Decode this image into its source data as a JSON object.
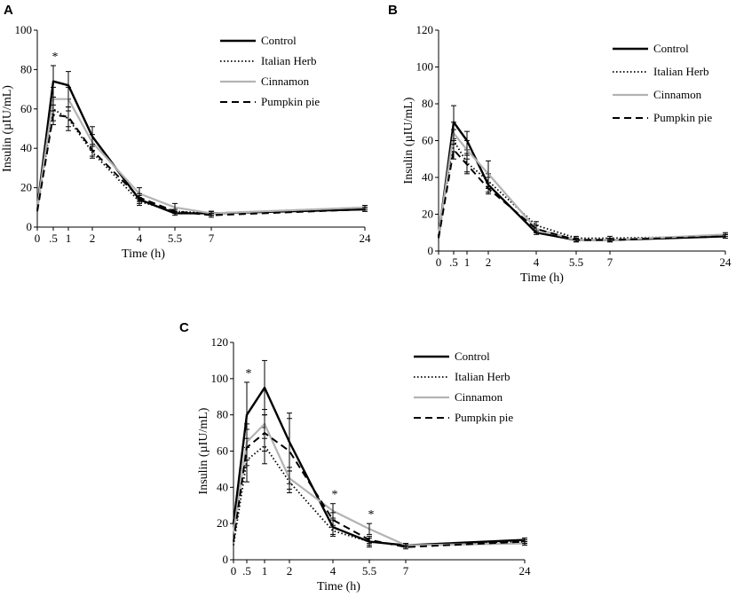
{
  "chart_data": [
    {
      "type": "line",
      "panel": "A",
      "xlabel": "Time (h)",
      "ylabel": "Insulin (µIU/mL)",
      "ylim": [
        0,
        100
      ],
      "yticks": [
        0,
        20,
        40,
        60,
        80,
        100
      ],
      "x_ticks": [
        "0",
        ".5",
        "1",
        "2",
        "4",
        "5.5",
        "7",
        "24"
      ],
      "x_tick_index": [
        0,
        1,
        2,
        3,
        4,
        5,
        6,
        7
      ],
      "legend": [
        "Control",
        "Italian Herb",
        "Cinnamon",
        "Pumpkin pie"
      ],
      "series": [
        {
          "name": "Control",
          "values": [
            10,
            74,
            72,
            46,
            14,
            7,
            7,
            9
          ],
          "errors": [
            0,
            8,
            7,
            5,
            2,
            1,
            1,
            1
          ]
        },
        {
          "name": "Italian Herb",
          "values": [
            9,
            60,
            55,
            38,
            13,
            8,
            7,
            10
          ],
          "errors": [
            0,
            6,
            6,
            3,
            2,
            1,
            1,
            1
          ]
        },
        {
          "name": "Cinnamon",
          "values": [
            10,
            65,
            65,
            43,
            17,
            10,
            7,
            10
          ],
          "errors": [
            0,
            6,
            6,
            4,
            3,
            2,
            1,
            1
          ]
        },
        {
          "name": "Pumpkin pie",
          "values": [
            8,
            57,
            56,
            39,
            15,
            8,
            6,
            9
          ],
          "errors": [
            0,
            5,
            5,
            3,
            2,
            1,
            1,
            1
          ]
        }
      ],
      "annotations": [
        {
          "x_index": 1,
          "text": "*"
        }
      ]
    },
    {
      "type": "line",
      "panel": "B",
      "xlabel": "Time (h)",
      "ylabel": "Insulin (µIU/mL)",
      "ylim": [
        0,
        120
      ],
      "yticks": [
        0,
        20,
        40,
        60,
        80,
        100,
        120
      ],
      "x_ticks": [
        "0",
        ".5",
        "1",
        "2",
        "4",
        "5.5",
        "7",
        "24"
      ],
      "x_tick_index": [
        0,
        1,
        2,
        3,
        4,
        5,
        6,
        7
      ],
      "legend": [
        "Control",
        "Italian Herb",
        "Cinnamon",
        "Pumpkin pie"
      ],
      "series": [
        {
          "name": "Control",
          "values": [
            8,
            70,
            60,
            36,
            10,
            6,
            6,
            8
          ],
          "errors": [
            0,
            9,
            5,
            4,
            1,
            1,
            1,
            1
          ]
        },
        {
          "name": "Italian Herb",
          "values": [
            8,
            60,
            48,
            38,
            14,
            7,
            7,
            8
          ],
          "errors": [
            0,
            6,
            5,
            4,
            2,
            1,
            1,
            1
          ]
        },
        {
          "name": "Cinnamon",
          "values": [
            9,
            64,
            55,
            42,
            12,
            6,
            6,
            9
          ],
          "errors": [
            0,
            6,
            5,
            7,
            2,
            1,
            1,
            1
          ]
        },
        {
          "name": "Pumpkin pie",
          "values": [
            7,
            55,
            47,
            34,
            12,
            6,
            6,
            8
          ],
          "errors": [
            0,
            5,
            5,
            3,
            2,
            1,
            1,
            1
          ]
        }
      ],
      "annotations": []
    },
    {
      "type": "line",
      "panel": "C",
      "xlabel": "Time (h)",
      "ylabel": "Insulin (µIU/mL)",
      "ylim": [
        0,
        120
      ],
      "yticks": [
        0,
        20,
        40,
        60,
        80,
        100,
        120
      ],
      "x_ticks": [
        "0",
        ".5",
        "1",
        "2",
        "4",
        "5.5",
        "7",
        "24"
      ],
      "x_tick_index": [
        0,
        1,
        2,
        3,
        4,
        5,
        6,
        7
      ],
      "legend": [
        "Control",
        "Italian Herb",
        "Cinnamon",
        "Pumpkin pie"
      ],
      "series": [
        {
          "name": "Control",
          "values": [
            20,
            80,
            95,
            65,
            18,
            10,
            8,
            11
          ],
          "errors": [
            0,
            18,
            15,
            16,
            4,
            3,
            1,
            1
          ]
        },
        {
          "name": "Italian Herb",
          "values": [
            8,
            55,
            63,
            43,
            16,
            10,
            8,
            10
          ],
          "errors": [
            0,
            12,
            10,
            6,
            3,
            2,
            1,
            1
          ]
        },
        {
          "name": "Cinnamon",
          "values": [
            15,
            65,
            75,
            45,
            27,
            17,
            8,
            9
          ],
          "errors": [
            0,
            10,
            8,
            6,
            4,
            3,
            1,
            1
          ]
        },
        {
          "name": "Pumpkin pie",
          "values": [
            10,
            62,
            70,
            60,
            22,
            11,
            7,
            10
          ],
          "errors": [
            0,
            10,
            10,
            18,
            4,
            2,
            1,
            1
          ]
        }
      ],
      "annotations": [
        {
          "x_index": 1,
          "text": "*"
        },
        {
          "x_index": 4,
          "text": "*"
        },
        {
          "x_index": 5,
          "text": "*"
        }
      ]
    }
  ],
  "styles": {
    "Control": {
      "color": "#000000",
      "width": 2.4,
      "dash": ""
    },
    "Italian Herb": {
      "color": "#000000",
      "width": 1.8,
      "dash": "1.5,2.5"
    },
    "Cinnamon": {
      "color": "#b3b3b3",
      "width": 2.2,
      "dash": ""
    },
    "Pumpkin pie": {
      "color": "#000000",
      "width": 2.0,
      "dash": "8,5"
    }
  }
}
